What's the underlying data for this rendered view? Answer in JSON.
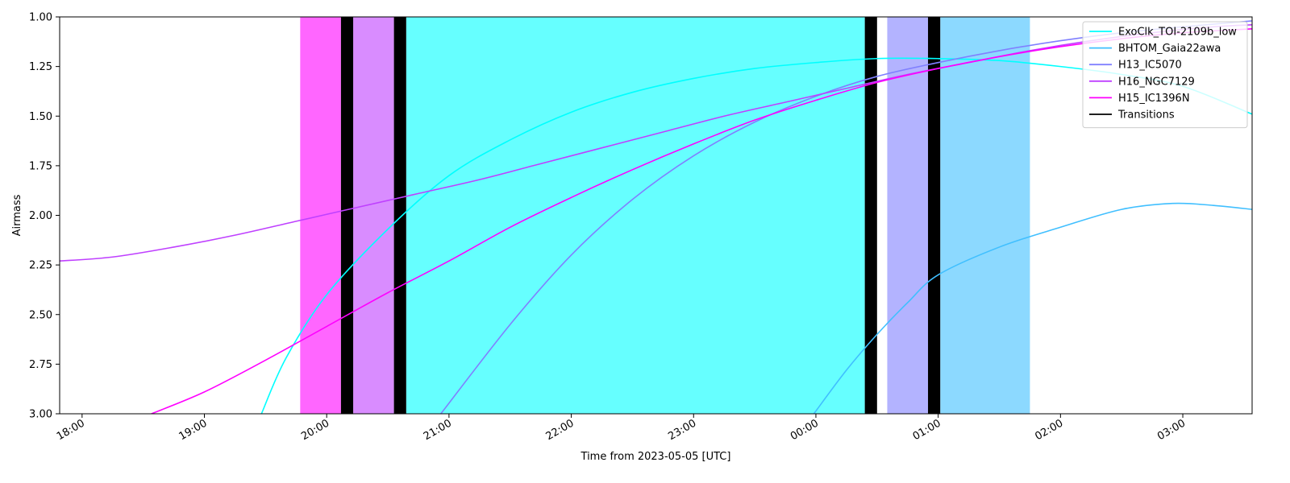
{
  "chart_data": {
    "type": "line",
    "xlabel": "Time from 2023-05-05 [UTC]",
    "ylabel": "Airmass",
    "xlim": [
      "2023-05-05 17:49",
      "2023-05-06 03:34"
    ],
    "ylim": [
      3.0,
      1.0
    ],
    "y_inverted": true,
    "y_ticks": [
      "1.00",
      "1.25",
      "1.50",
      "1.75",
      "2.00",
      "2.25",
      "2.50",
      "2.75",
      "3.00"
    ],
    "x_ticks": [
      {
        "time": "2023-05-05 18:00",
        "label": "18:00"
      },
      {
        "time": "2023-05-05 19:00",
        "label": "19:00"
      },
      {
        "time": "2023-05-05 20:00",
        "label": "20:00"
      },
      {
        "time": "2023-05-05 21:00",
        "label": "21:00"
      },
      {
        "time": "2023-05-05 22:00",
        "label": "22:00"
      },
      {
        "time": "2023-05-05 23:00",
        "label": "23:00"
      },
      {
        "time": "2023-05-06 00:00",
        "label": "00:00"
      },
      {
        "time": "2023-05-06 01:00",
        "label": "01:00"
      },
      {
        "time": "2023-05-06 02:00",
        "label": "02:00"
      },
      {
        "time": "2023-05-06 03:00",
        "label": "03:00"
      }
    ],
    "grid": false,
    "legend_position": "top-right",
    "transition_color": "#000000",
    "series": [
      {
        "name": "ExoClk_TOI-2109b_low",
        "color": "#00ffff",
        "points": [
          [
            "2023-05-05 19:28",
            3.0
          ],
          [
            "2023-05-05 19:40",
            2.72
          ],
          [
            "2023-05-05 20:00",
            2.4
          ],
          [
            "2023-05-05 20:30",
            2.07
          ],
          [
            "2023-05-05 21:00",
            1.8
          ],
          [
            "2023-05-05 21:30",
            1.62
          ],
          [
            "2023-05-05 22:00",
            1.48
          ],
          [
            "2023-05-05 22:30",
            1.38
          ],
          [
            "2023-05-05 23:00",
            1.31
          ],
          [
            "2023-05-05 23:30",
            1.26
          ],
          [
            "2023-05-06 00:00",
            1.23
          ],
          [
            "2023-05-06 00:30",
            1.21
          ],
          [
            "2023-05-06 01:00",
            1.21
          ],
          [
            "2023-05-06 01:30",
            1.22
          ],
          [
            "2023-05-06 02:00",
            1.25
          ],
          [
            "2023-05-06 02:30",
            1.29
          ],
          [
            "2023-05-06 03:00",
            1.35
          ],
          [
            "2023-05-06 03:34",
            1.49
          ]
        ]
      },
      {
        "name": "BHTOM_Gaia22awa",
        "color": "#40bfff",
        "points": [
          [
            "2023-05-05 23:59",
            3.0
          ],
          [
            "2023-05-06 00:15",
            2.78
          ],
          [
            "2023-05-06 00:30",
            2.6
          ],
          [
            "2023-05-06 00:45",
            2.44
          ],
          [
            "2023-05-06 01:00",
            2.3
          ],
          [
            "2023-05-06 01:30",
            2.16
          ],
          [
            "2023-05-06 02:00",
            2.06
          ],
          [
            "2023-05-06 02:30",
            1.97
          ],
          [
            "2023-05-06 02:55",
            1.94
          ],
          [
            "2023-05-06 03:15",
            1.95
          ],
          [
            "2023-05-06 03:34",
            1.97
          ]
        ]
      },
      {
        "name": "H13_IC5070",
        "color": "#8080ff",
        "points": [
          [
            "2023-05-05 20:56",
            3.0
          ],
          [
            "2023-05-05 21:30",
            2.55
          ],
          [
            "2023-05-05 22:00",
            2.2
          ],
          [
            "2023-05-05 22:30",
            1.92
          ],
          [
            "2023-05-05 23:00",
            1.7
          ],
          [
            "2023-05-05 23:30",
            1.53
          ],
          [
            "2023-05-06 00:00",
            1.4
          ],
          [
            "2023-05-06 00:30",
            1.3
          ],
          [
            "2023-05-06 01:00",
            1.23
          ],
          [
            "2023-05-06 01:30",
            1.17
          ],
          [
            "2023-05-06 02:00",
            1.12
          ],
          [
            "2023-05-06 02:30",
            1.08
          ],
          [
            "2023-05-06 03:00",
            1.05
          ],
          [
            "2023-05-06 03:34",
            1.02
          ]
        ]
      },
      {
        "name": "H16_NGC7129",
        "color": "#bf40ff",
        "points": [
          [
            "2023-05-05 17:49",
            2.23
          ],
          [
            "2023-05-05 18:15",
            2.21
          ],
          [
            "2023-05-05 18:45",
            2.16
          ],
          [
            "2023-05-05 19:15",
            2.1
          ],
          [
            "2023-05-05 19:45",
            2.03
          ],
          [
            "2023-05-05 20:15",
            1.96
          ],
          [
            "2023-05-05 20:45",
            1.89
          ],
          [
            "2023-05-05 21:15",
            1.82
          ],
          [
            "2023-05-05 21:45",
            1.74
          ],
          [
            "2023-05-05 22:15",
            1.66
          ],
          [
            "2023-05-05 22:45",
            1.58
          ],
          [
            "2023-05-05 23:15",
            1.5
          ],
          [
            "2023-05-05 23:45",
            1.43
          ],
          [
            "2023-05-06 00:15",
            1.36
          ],
          [
            "2023-05-06 00:45",
            1.29
          ],
          [
            "2023-05-06 01:15",
            1.23
          ],
          [
            "2023-05-06 01:45",
            1.17
          ],
          [
            "2023-05-06 02:15",
            1.12
          ],
          [
            "2023-05-06 02:45",
            1.08
          ],
          [
            "2023-05-06 03:15",
            1.05
          ],
          [
            "2023-05-06 03:34",
            1.04
          ]
        ]
      },
      {
        "name": "H15_IC1396N",
        "color": "#ff00ff",
        "points": [
          [
            "2023-05-05 18:34",
            3.0
          ],
          [
            "2023-05-05 19:00",
            2.89
          ],
          [
            "2023-05-05 19:30",
            2.73
          ],
          [
            "2023-05-05 20:00",
            2.56
          ],
          [
            "2023-05-05 20:30",
            2.39
          ],
          [
            "2023-05-05 21:00",
            2.23
          ],
          [
            "2023-05-05 21:30",
            2.06
          ],
          [
            "2023-05-05 22:00",
            1.91
          ],
          [
            "2023-05-05 22:30",
            1.77
          ],
          [
            "2023-05-05 23:00",
            1.64
          ],
          [
            "2023-05-05 23:30",
            1.52
          ],
          [
            "2023-05-06 00:00",
            1.42
          ],
          [
            "2023-05-06 00:30",
            1.33
          ],
          [
            "2023-05-06 01:00",
            1.26
          ],
          [
            "2023-05-06 01:30",
            1.2
          ],
          [
            "2023-05-06 02:00",
            1.15
          ],
          [
            "2023-05-06 02:30",
            1.11
          ],
          [
            "2023-05-06 03:00",
            1.08
          ],
          [
            "2023-05-06 03:34",
            1.06
          ]
        ]
      }
    ],
    "legend_extra": [
      {
        "name": "Transitions",
        "color": "#000000"
      }
    ],
    "shaded_blocks": [
      {
        "start": "2023-05-05 19:47",
        "end": "2023-05-05 20:07",
        "color": "#ff00ff",
        "opacity": 0.6
      },
      {
        "start": "2023-05-05 20:13",
        "end": "2023-05-05 20:33",
        "color": "#bf40ff",
        "opacity": 0.6
      },
      {
        "start": "2023-05-05 20:39",
        "end": "2023-05-06 00:24",
        "color": "#00ffff",
        "opacity": 0.6
      },
      {
        "start": "2023-05-06 00:35",
        "end": "2023-05-06 00:55",
        "color": "#8080ff",
        "opacity": 0.6
      },
      {
        "start": "2023-05-06 01:01",
        "end": "2023-05-06 01:45",
        "color": "#40bfff",
        "opacity": 0.6
      }
    ],
    "transitions": [
      {
        "start": "2023-05-05 20:07",
        "end": "2023-05-05 20:13"
      },
      {
        "start": "2023-05-05 20:33",
        "end": "2023-05-05 20:39"
      },
      {
        "start": "2023-05-06 00:24",
        "end": "2023-05-06 00:30"
      },
      {
        "start": "2023-05-06 00:55",
        "end": "2023-05-06 01:01"
      }
    ]
  }
}
